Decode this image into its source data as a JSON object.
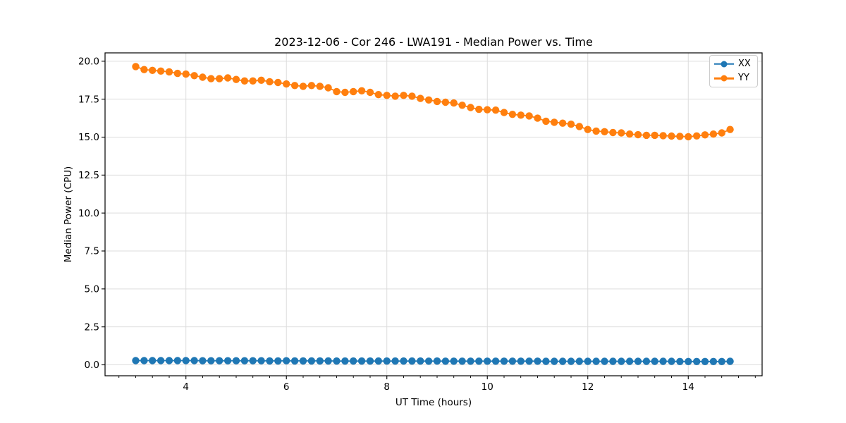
{
  "chart_data": {
    "type": "line",
    "title": "2023-12-06 - Cor 246 - LWA191 - Median Power vs. Time",
    "xlabel": "UT Time (hours)",
    "ylabel": "Median Power (CPU)",
    "xlim": [
      2.39,
      15.47
    ],
    "ylim": [
      -0.72,
      20.55
    ],
    "xticks": [
      4,
      6,
      8,
      10,
      12,
      14
    ],
    "xtick_labels": [
      "4",
      "6",
      "8",
      "10",
      "12",
      "14"
    ],
    "x_minor_step": 0.33333,
    "yticks": [
      0.0,
      2.5,
      5.0,
      7.5,
      10.0,
      12.5,
      15.0,
      17.5,
      20.0
    ],
    "ytick_labels": [
      "0.0",
      "2.5",
      "5.0",
      "7.5",
      "10.0",
      "12.5",
      "15.0",
      "17.5",
      "20.0"
    ],
    "grid": true,
    "grid_color": "#dcdcdc",
    "legend_position": "upper-right",
    "marker": "circle",
    "x": [
      3.0,
      3.167,
      3.333,
      3.5,
      3.667,
      3.833,
      4.0,
      4.167,
      4.333,
      4.5,
      4.667,
      4.833,
      5.0,
      5.167,
      5.333,
      5.5,
      5.667,
      5.833,
      6.0,
      6.167,
      6.333,
      6.5,
      6.667,
      6.833,
      7.0,
      7.167,
      7.333,
      7.5,
      7.667,
      7.833,
      8.0,
      8.167,
      8.333,
      8.5,
      8.667,
      8.833,
      9.0,
      9.167,
      9.333,
      9.5,
      9.667,
      9.833,
      10.0,
      10.167,
      10.333,
      10.5,
      10.667,
      10.833,
      11.0,
      11.167,
      11.333,
      11.5,
      11.667,
      11.833,
      12.0,
      12.167,
      12.333,
      12.5,
      12.667,
      12.833,
      13.0,
      13.167,
      13.333,
      13.5,
      13.667,
      13.833,
      14.0,
      14.167,
      14.333,
      14.5,
      14.667,
      14.833
    ],
    "series": [
      {
        "name": "XX",
        "color": "#1f77b4",
        "values": [
          0.28,
          0.28,
          0.28,
          0.28,
          0.28,
          0.28,
          0.28,
          0.28,
          0.27,
          0.27,
          0.27,
          0.27,
          0.27,
          0.27,
          0.27,
          0.27,
          0.26,
          0.26,
          0.27,
          0.26,
          0.26,
          0.26,
          0.26,
          0.26,
          0.25,
          0.25,
          0.25,
          0.25,
          0.25,
          0.25,
          0.25,
          0.25,
          0.25,
          0.25,
          0.25,
          0.24,
          0.25,
          0.24,
          0.24,
          0.24,
          0.24,
          0.24,
          0.24,
          0.24,
          0.24,
          0.24,
          0.24,
          0.24,
          0.24,
          0.23,
          0.23,
          0.23,
          0.23,
          0.23,
          0.23,
          0.23,
          0.23,
          0.23,
          0.23,
          0.23,
          0.23,
          0.23,
          0.23,
          0.23,
          0.23,
          0.22,
          0.22,
          0.22,
          0.22,
          0.22,
          0.22,
          0.23
        ]
      },
      {
        "name": "YY",
        "color": "#ff7f0e",
        "values": [
          19.65,
          19.45,
          19.4,
          19.35,
          19.3,
          19.2,
          19.15,
          19.05,
          18.95,
          18.85,
          18.85,
          18.9,
          18.8,
          18.7,
          18.7,
          18.75,
          18.65,
          18.6,
          18.5,
          18.4,
          18.35,
          18.4,
          18.35,
          18.25,
          18.0,
          17.95,
          18.0,
          18.05,
          17.95,
          17.8,
          17.75,
          17.7,
          17.75,
          17.7,
          17.55,
          17.45,
          17.35,
          17.3,
          17.25,
          17.1,
          16.95,
          16.83,
          16.8,
          16.78,
          16.62,
          16.5,
          16.45,
          16.4,
          16.25,
          16.05,
          15.98,
          15.92,
          15.85,
          15.7,
          15.5,
          15.4,
          15.36,
          15.3,
          15.28,
          15.2,
          15.16,
          15.12,
          15.12,
          15.1,
          15.07,
          15.05,
          15.03,
          15.08,
          15.15,
          15.2,
          15.28,
          15.5
        ]
      }
    ]
  }
}
